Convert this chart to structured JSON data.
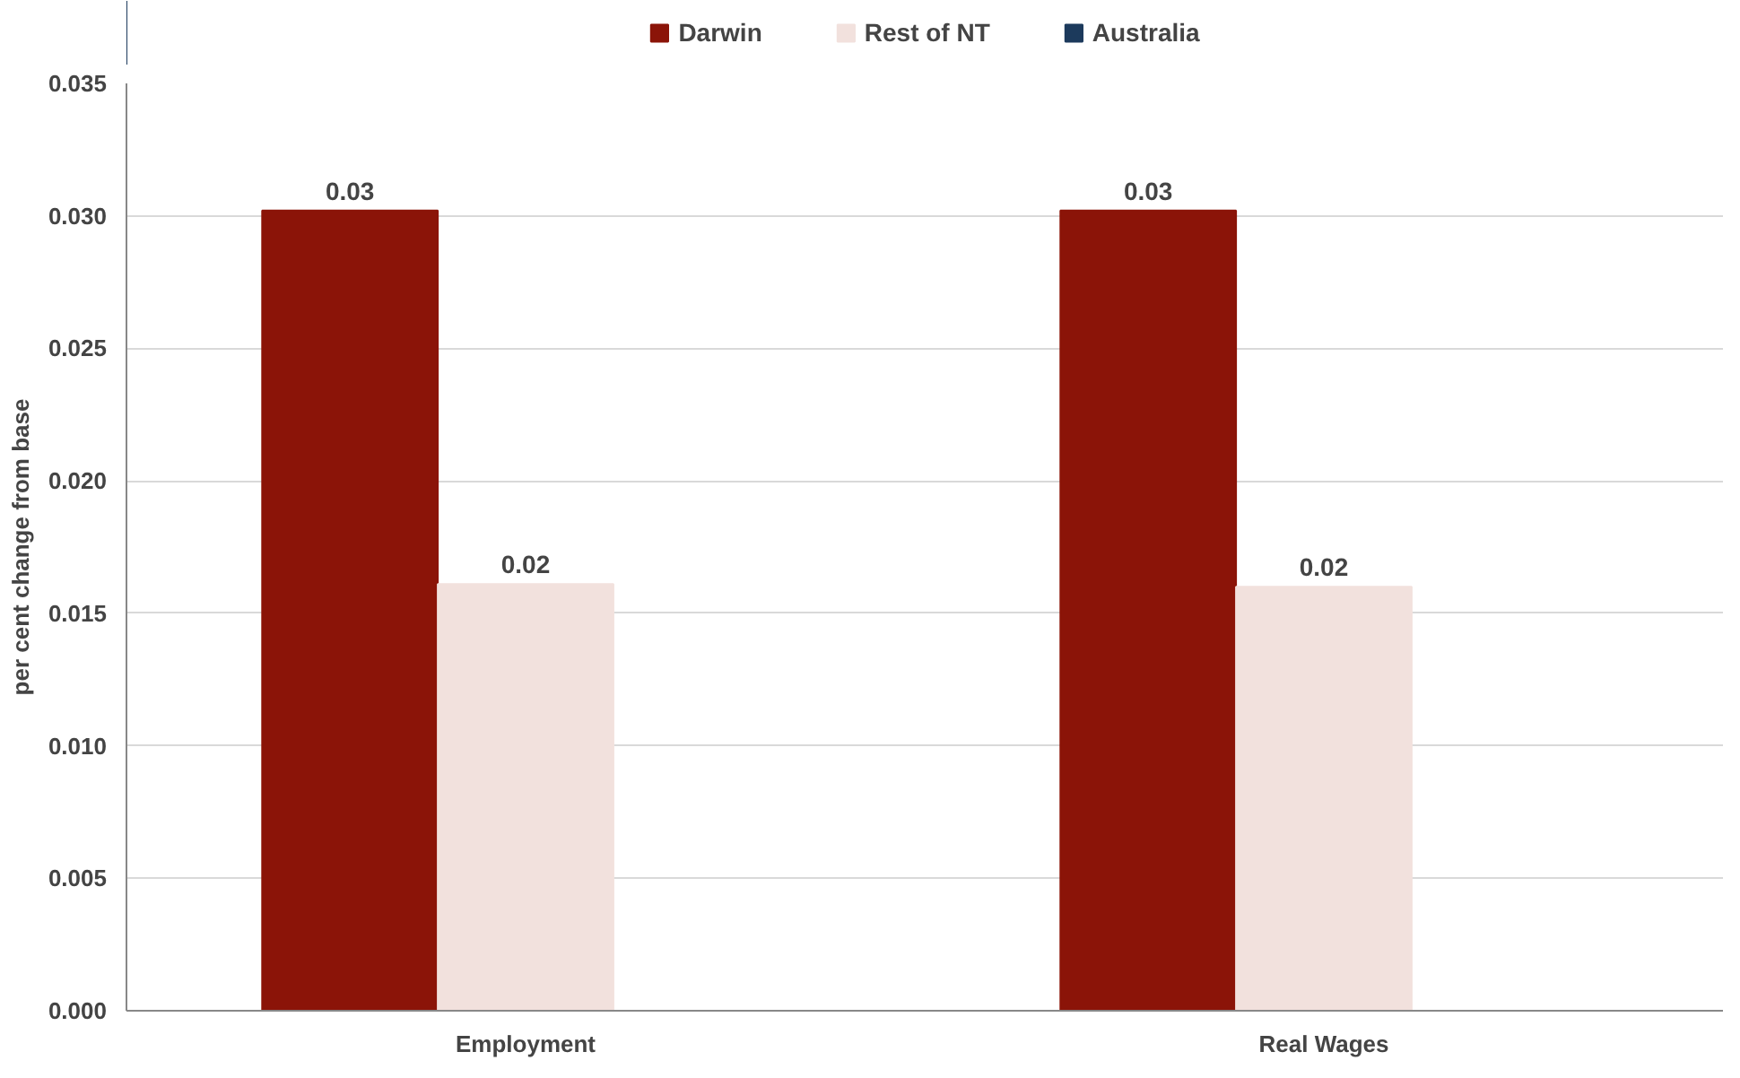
{
  "chart_data": {
    "type": "bar",
    "ylabel": "per cent change from base",
    "categories": [
      "Employment",
      "Real Wages"
    ],
    "series": [
      {
        "name": "Darwin",
        "color": "#8b1408",
        "values": [
          0.0302,
          0.0302
        ],
        "value_labels": [
          "0.03",
          "0.03"
        ]
      },
      {
        "name": "Rest of NT",
        "color": "#f2e1dd",
        "values": [
          0.0161,
          0.016
        ],
        "value_labels": [
          "0.02",
          "0.02"
        ]
      },
      {
        "name": "Australia",
        "color": "#1c3a5c",
        "values": [
          null,
          null
        ],
        "value_labels": [
          null,
          null
        ]
      }
    ],
    "ylim": [
      0,
      0.035
    ],
    "yticks": [
      {
        "value": 0,
        "label": "0.000"
      },
      {
        "value": 0.005,
        "label": "0.005"
      },
      {
        "value": 0.01,
        "label": "0.010"
      },
      {
        "value": 0.015,
        "label": "0.015"
      },
      {
        "value": 0.02,
        "label": "0.020"
      },
      {
        "value": 0.025,
        "label": "0.025"
      },
      {
        "value": 0.03,
        "label": "0.030"
      },
      {
        "value": 0.035,
        "label": "0.035"
      }
    ],
    "grid": "y",
    "legend": "top"
  }
}
